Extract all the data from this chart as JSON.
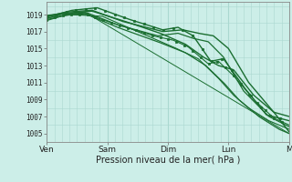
{
  "title": "",
  "xlabel": "Pression niveau de la mer( hPa )",
  "ylabel": "",
  "bg_color": "#cceee8",
  "grid_color": "#aad8d0",
  "line_color": "#1a6e30",
  "yticks": [
    1005,
    1007,
    1009,
    1011,
    1013,
    1015,
    1017,
    1019
  ],
  "xtick_labels": [
    "Ven",
    "Sam",
    "Dim",
    "Lun",
    "M"
  ],
  "ylim": [
    1004.0,
    1020.5
  ],
  "xlim": [
    0,
    96
  ],
  "xtick_positions": [
    0,
    24,
    48,
    72,
    96
  ],
  "figsize": [
    3.2,
    2.0
  ],
  "dpi": 100
}
